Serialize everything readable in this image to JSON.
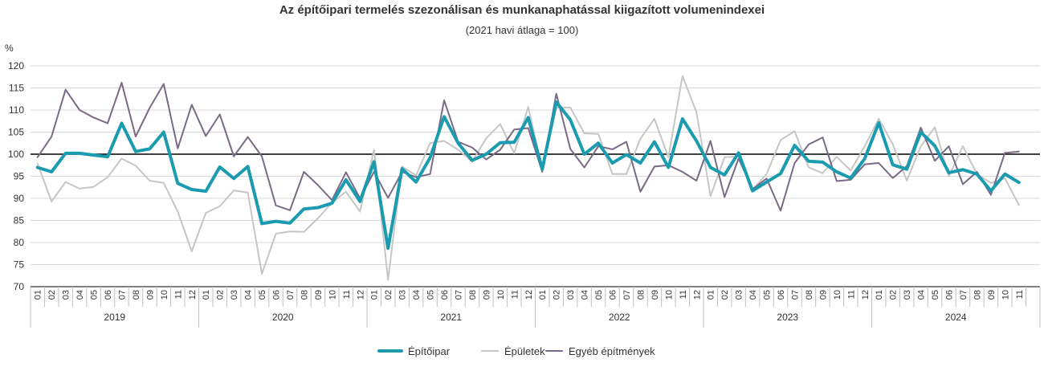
{
  "chart_data": {
    "type": "line",
    "title": "Az építőipari termelés szezonálisan és munkanaphatással kiigazított volumenindexei",
    "subtitle": "(2021 havi átlaga = 100)",
    "ylabel": "%",
    "ylim": [
      70,
      120
    ],
    "yticks": [
      70,
      75,
      80,
      85,
      90,
      95,
      100,
      105,
      110,
      115,
      120
    ],
    "reference_line": 100,
    "grid": true,
    "legend_position": "bottom",
    "years": [
      "2019",
      "2020",
      "2021",
      "2022",
      "2023",
      "2024"
    ],
    "months": [
      "01",
      "02",
      "03",
      "04",
      "05",
      "06",
      "07",
      "08",
      "09",
      "10",
      "11",
      "12"
    ],
    "x": [
      "2019-01",
      "2019-02",
      "2019-03",
      "2019-04",
      "2019-05",
      "2019-06",
      "2019-07",
      "2019-08",
      "2019-09",
      "2019-10",
      "2019-11",
      "2019-12",
      "2020-01",
      "2020-02",
      "2020-03",
      "2020-04",
      "2020-05",
      "2020-06",
      "2020-07",
      "2020-08",
      "2020-09",
      "2020-10",
      "2020-11",
      "2020-12",
      "2021-01",
      "2021-02",
      "2021-03",
      "2021-04",
      "2021-05",
      "2021-06",
      "2021-07",
      "2021-08",
      "2021-09",
      "2021-10",
      "2021-11",
      "2021-12",
      "2022-01",
      "2022-02",
      "2022-03",
      "2022-04",
      "2022-05",
      "2022-06",
      "2022-07",
      "2022-08",
      "2022-09",
      "2022-10",
      "2022-11",
      "2022-12",
      "2023-01",
      "2023-02",
      "2023-03",
      "2023-04",
      "2023-05",
      "2023-06",
      "2023-07",
      "2023-08",
      "2023-09",
      "2023-10",
      "2023-11",
      "2023-12",
      "2024-01",
      "2024-02",
      "2024-03",
      "2024-04",
      "2024-05",
      "2024-06",
      "2024-07",
      "2024-08",
      "2024-09",
      "2024-10",
      "2024-11"
    ],
    "series": [
      {
        "name": "Építőipar",
        "color": "#1a9bb0",
        "width": 4,
        "values": [
          97.0,
          96.0,
          100.2,
          100.2,
          99.8,
          99.4,
          107.0,
          100.6,
          101.2,
          105.0,
          93.4,
          92.0,
          91.6,
          97.1,
          94.5,
          97.2,
          84.3,
          84.8,
          84.4,
          87.6,
          87.9,
          88.9,
          94.2,
          89.3,
          98.3,
          78.7,
          96.7,
          93.7,
          99.2,
          108.5,
          102.5,
          98.6,
          100.0,
          102.6,
          102.7,
          108.3,
          96.6,
          111.8,
          107.8,
          100.0,
          102.5,
          98.0,
          99.9,
          98.0,
          102.8,
          97.0,
          108.0,
          103.0,
          97.0,
          95.3,
          100.3,
          91.7,
          93.7,
          95.6,
          102.0,
          98.4,
          98.2,
          96.0,
          94.6,
          99.0,
          107.1,
          97.6,
          96.6,
          105.0,
          101.9,
          95.8,
          96.5,
          95.5,
          91.7,
          95.5,
          93.6
        ]
      },
      {
        "name": "Épületek",
        "color": "#c6c6c6",
        "width": 2,
        "values": [
          97.9,
          89.3,
          93.7,
          92.2,
          92.6,
          94.8,
          99.0,
          97.4,
          94.0,
          93.5,
          87.0,
          78.0,
          86.7,
          88.2,
          91.8,
          91.3,
          72.9,
          82.0,
          82.5,
          82.4,
          85.5,
          89.0,
          91.5,
          87.0,
          101.0,
          71.6,
          97.2,
          95.2,
          102.5,
          103.0,
          101.0,
          98.3,
          103.6,
          106.8,
          100.2,
          110.7,
          96.5,
          110.5,
          110.6,
          104.7,
          104.6,
          95.5,
          95.5,
          103.5,
          108.0,
          99.3,
          117.7,
          109.5,
          90.5,
          99.3,
          99.5,
          92.0,
          95.5,
          103.2,
          105.2,
          97.0,
          95.7,
          99.4,
          96.3,
          101.8,
          108.0,
          102.3,
          94.0,
          101.8,
          106.1,
          95.0,
          101.8,
          95.5,
          93.5,
          94.5,
          88.5
        ]
      },
      {
        "name": "Egyéb építmények",
        "color": "#7a6a85",
        "width": 2,
        "values": [
          99.3,
          104.0,
          114.6,
          110.0,
          108.3,
          107.0,
          116.2,
          104.0,
          110.5,
          115.9,
          101.3,
          111.2,
          104.1,
          109.0,
          99.5,
          103.9,
          99.5,
          88.4,
          87.3,
          96.0,
          93.0,
          89.6,
          95.9,
          90.0,
          96.0,
          90.1,
          96.0,
          94.8,
          95.5,
          112.2,
          102.8,
          101.5,
          98.8,
          101.0,
          105.6,
          105.9,
          96.0,
          113.7,
          101.2,
          97.0,
          101.8,
          101.1,
          102.8,
          91.5,
          97.2,
          97.5,
          96.0,
          94.0,
          103.0,
          90.3,
          99.0,
          92.1,
          94.5,
          87.2,
          98.0,
          102.2,
          103.8,
          93.9,
          94.2,
          97.7,
          98.0,
          94.6,
          97.3,
          106.0,
          98.5,
          101.8,
          93.2,
          96.0,
          90.8,
          100.3,
          100.6
        ]
      }
    ]
  }
}
